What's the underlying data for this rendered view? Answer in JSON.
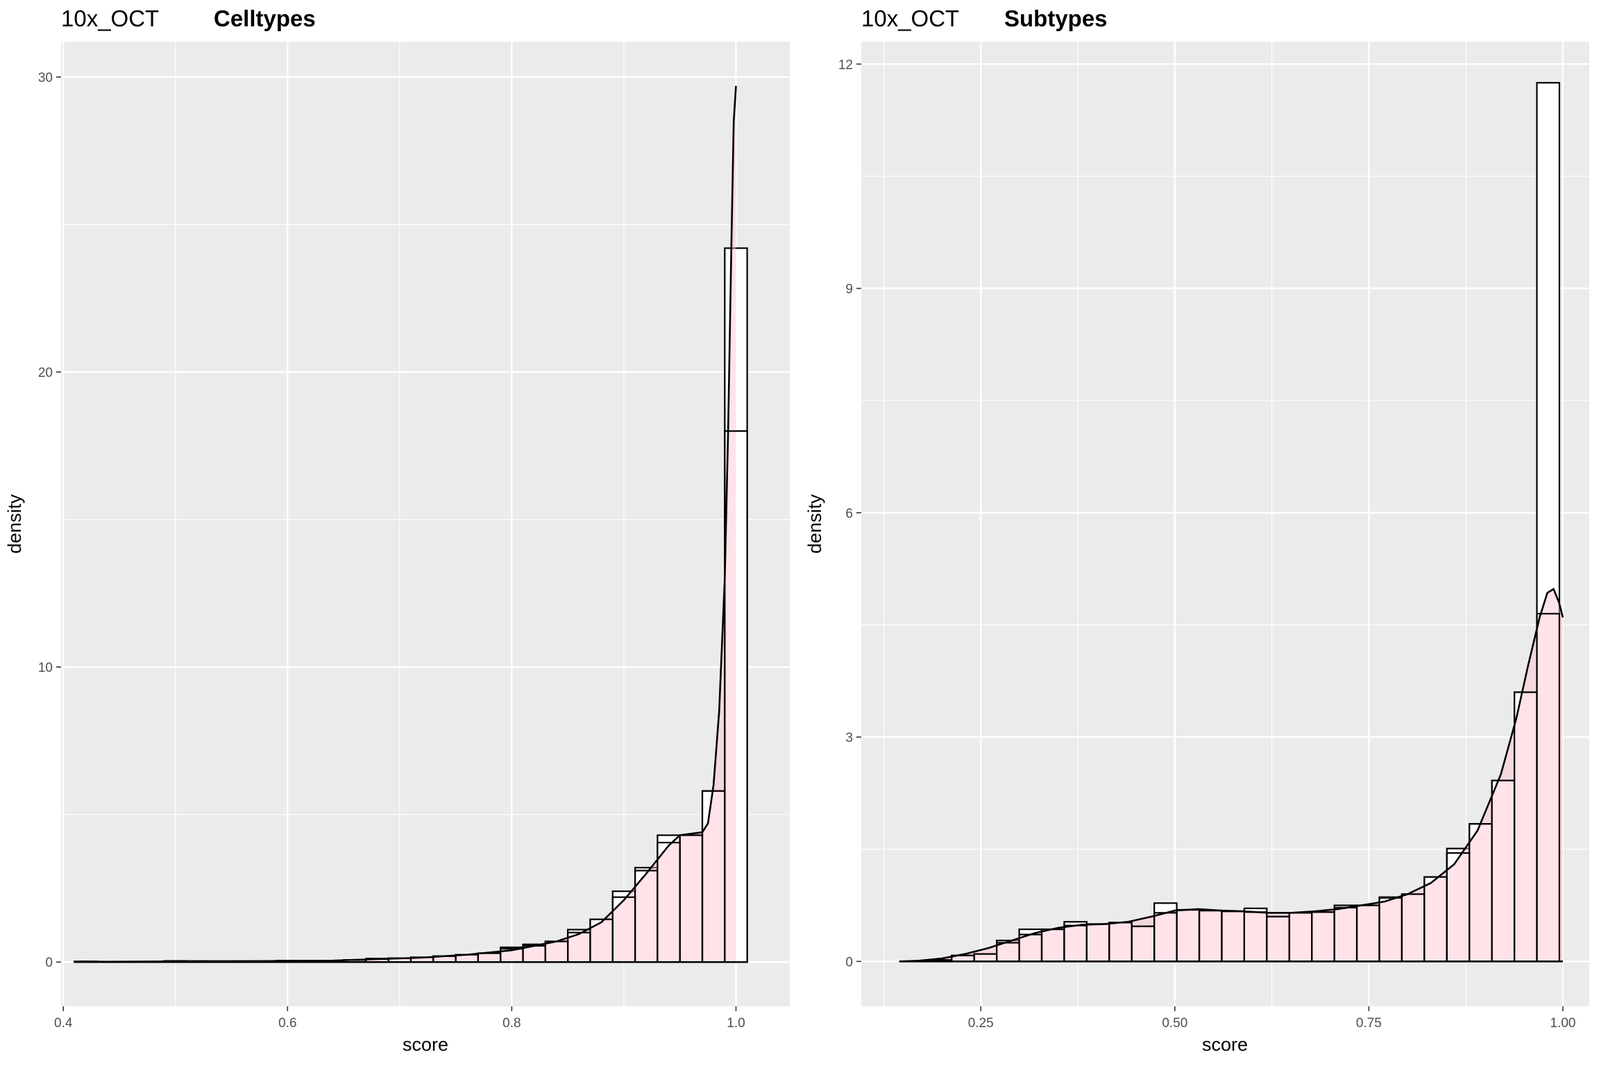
{
  "chart_data": [
    {
      "type": "bar",
      "title": "10x_OCT",
      "subtitle": "Celltypes",
      "xlabel": "score",
      "ylabel": "density",
      "xlim": [
        0.398,
        1.048
      ],
      "ylim": [
        -1.5,
        31.2
      ],
      "x_ticks": [
        0.4,
        0.6,
        0.8,
        1.0
      ],
      "x_tick_labels": [
        "0.4",
        "0.6",
        "0.8",
        "1.0"
      ],
      "y_ticks": [
        0,
        10,
        20,
        30
      ],
      "y_tick_labels": [
        "0",
        "10",
        "20",
        "30"
      ],
      "grid": true,
      "bin_width": 0.02,
      "bins": [
        {
          "x": 0.42,
          "hist": 0.02,
          "kde": 0.03
        },
        {
          "x": 0.44,
          "hist": 0.0,
          "kde": 0.01
        },
        {
          "x": 0.46,
          "hist": 0.0,
          "kde": 0.01
        },
        {
          "x": 0.48,
          "hist": 0.0,
          "kde": 0.01
        },
        {
          "x": 0.5,
          "hist": 0.04,
          "kde": 0.03
        },
        {
          "x": 0.52,
          "hist": 0.03,
          "kde": 0.03
        },
        {
          "x": 0.54,
          "hist": 0.0,
          "kde": 0.02
        },
        {
          "x": 0.56,
          "hist": 0.03,
          "kde": 0.02
        },
        {
          "x": 0.58,
          "hist": 0.02,
          "kde": 0.04
        },
        {
          "x": 0.6,
          "hist": 0.05,
          "kde": 0.04
        },
        {
          "x": 0.62,
          "hist": 0.04,
          "kde": 0.04
        },
        {
          "x": 0.64,
          "hist": 0.04,
          "kde": 0.05
        },
        {
          "x": 0.66,
          "hist": 0.07,
          "kde": 0.08
        },
        {
          "x": 0.68,
          "hist": 0.12,
          "kde": 0.1
        },
        {
          "x": 0.7,
          "hist": 0.13,
          "kde": 0.13
        },
        {
          "x": 0.72,
          "hist": 0.16,
          "kde": 0.16
        },
        {
          "x": 0.74,
          "hist": 0.2,
          "kde": 0.2
        },
        {
          "x": 0.76,
          "hist": 0.25,
          "kde": 0.26
        },
        {
          "x": 0.78,
          "hist": 0.3,
          "kde": 0.33
        },
        {
          "x": 0.8,
          "hist": 0.5,
          "kde": 0.45
        },
        {
          "x": 0.82,
          "hist": 0.6,
          "kde": 0.55
        },
        {
          "x": 0.84,
          "hist": 0.7,
          "kde": 0.72
        },
        {
          "x": 0.86,
          "hist": 1.1,
          "kde": 1.0
        },
        {
          "x": 0.88,
          "hist": 1.45,
          "kde": 1.45
        },
        {
          "x": 0.9,
          "hist": 2.4,
          "kde": 2.2
        },
        {
          "x": 0.92,
          "hist": 3.2,
          "kde": 3.1
        },
        {
          "x": 0.94,
          "hist": 4.3,
          "kde": 4.05
        },
        {
          "x": 0.96,
          "hist": 4.3,
          "kde": 4.35
        },
        {
          "x": 0.98,
          "hist": 5.8,
          "kde": 6.0
        },
        {
          "x": 1.0,
          "hist": 24.2,
          "kde": 18.0
        }
      ],
      "kde_curve": {
        "x": [
          0.415,
          0.44,
          0.48,
          0.52,
          0.56,
          0.6,
          0.64,
          0.68,
          0.72,
          0.76,
          0.8,
          0.84,
          0.86,
          0.88,
          0.9,
          0.92,
          0.94,
          0.95,
          0.96,
          0.97,
          0.975,
          0.98,
          0.985,
          0.99,
          0.993,
          0.996,
          0.998,
          1.0
        ],
        "y": [
          0.02,
          0.01,
          0.02,
          0.03,
          0.03,
          0.04,
          0.05,
          0.1,
          0.15,
          0.25,
          0.4,
          0.7,
          0.95,
          1.35,
          2.1,
          3.0,
          3.95,
          4.3,
          4.35,
          4.4,
          4.7,
          6.0,
          8.5,
          13.0,
          18.0,
          24.5,
          28.5,
          29.7
        ]
      }
    },
    {
      "type": "bar",
      "title": "10x_OCT",
      "subtitle": "Subtypes",
      "xlabel": "score",
      "ylabel": "density",
      "xlim": [
        0.096,
        1.034
      ],
      "ylim": [
        -0.6,
        12.3
      ],
      "x_ticks": [
        0.25,
        0.5,
        0.75,
        1.0
      ],
      "x_tick_labels": [
        "0.25",
        "0.50",
        "0.75",
        "1.00"
      ],
      "y_ticks": [
        0,
        3,
        6,
        9,
        12
      ],
      "y_tick_labels": [
        "0",
        "3",
        "6",
        "9",
        "12"
      ],
      "grid": true,
      "bin_width": 0.029,
      "bins": [
        {
          "x": 0.198,
          "hist": 0.02,
          "kde": 0.03
        },
        {
          "x": 0.227,
          "hist": 0.08,
          "kde": 0.08
        },
        {
          "x": 0.256,
          "hist": 0.1,
          "kde": 0.15
        },
        {
          "x": 0.285,
          "hist": 0.28,
          "kde": 0.25
        },
        {
          "x": 0.314,
          "hist": 0.43,
          "kde": 0.36
        },
        {
          "x": 0.343,
          "hist": 0.43,
          "kde": 0.43
        },
        {
          "x": 0.372,
          "hist": 0.53,
          "kde": 0.48
        },
        {
          "x": 0.401,
          "hist": 0.5,
          "kde": 0.5
        },
        {
          "x": 0.43,
          "hist": 0.52,
          "kde": 0.52
        },
        {
          "x": 0.459,
          "hist": 0.47,
          "kde": 0.57
        },
        {
          "x": 0.488,
          "hist": 0.78,
          "kde": 0.65
        },
        {
          "x": 0.517,
          "hist": 0.69,
          "kde": 0.69
        },
        {
          "x": 0.546,
          "hist": 0.68,
          "kde": 0.68
        },
        {
          "x": 0.575,
          "hist": 0.67,
          "kde": 0.67
        },
        {
          "x": 0.604,
          "hist": 0.71,
          "kde": 0.66
        },
        {
          "x": 0.633,
          "hist": 0.6,
          "kde": 0.64
        },
        {
          "x": 0.662,
          "hist": 0.65,
          "kde": 0.65
        },
        {
          "x": 0.691,
          "hist": 0.66,
          "kde": 0.67
        },
        {
          "x": 0.72,
          "hist": 0.75,
          "kde": 0.72
        },
        {
          "x": 0.749,
          "hist": 0.75,
          "kde": 0.78
        },
        {
          "x": 0.778,
          "hist": 0.86,
          "kde": 0.85
        },
        {
          "x": 0.807,
          "hist": 0.9,
          "kde": 0.96
        },
        {
          "x": 0.836,
          "hist": 1.13,
          "kde": 1.14
        },
        {
          "x": 0.865,
          "hist": 1.51,
          "kde": 1.45
        },
        {
          "x": 0.894,
          "hist": 1.84,
          "kde": 1.95
        },
        {
          "x": 0.923,
          "hist": 2.42,
          "kde": 2.7
        },
        {
          "x": 0.952,
          "hist": 3.6,
          "kde": 3.8
        },
        {
          "x": 0.981,
          "hist": 11.75,
          "kde": 4.65
        }
      ],
      "kde_curve": {
        "x": [
          0.145,
          0.17,
          0.2,
          0.23,
          0.26,
          0.29,
          0.32,
          0.35,
          0.38,
          0.41,
          0.44,
          0.47,
          0.5,
          0.53,
          0.56,
          0.59,
          0.62,
          0.65,
          0.68,
          0.71,
          0.74,
          0.77,
          0.8,
          0.83,
          0.86,
          0.89,
          0.92,
          0.94,
          0.955,
          0.97,
          0.98,
          0.988,
          0.995,
          1.0
        ],
        "y": [
          0.0,
          0.01,
          0.04,
          0.1,
          0.18,
          0.28,
          0.38,
          0.45,
          0.49,
          0.5,
          0.53,
          0.6,
          0.68,
          0.7,
          0.68,
          0.67,
          0.65,
          0.65,
          0.67,
          0.7,
          0.75,
          0.8,
          0.9,
          1.05,
          1.3,
          1.75,
          2.5,
          3.25,
          3.95,
          4.6,
          4.93,
          4.98,
          4.8,
          4.6
        ]
      }
    }
  ],
  "colors": {
    "panel_bg": "#ebebeb",
    "grid": "#ffffff",
    "bar_fill": "#ffffff",
    "bar_stroke": "#000000",
    "density_fill": "#ffc0cb",
    "density_alpha": 0.45,
    "density_stroke": "#000000",
    "tick_label": "#4d4d4d"
  }
}
